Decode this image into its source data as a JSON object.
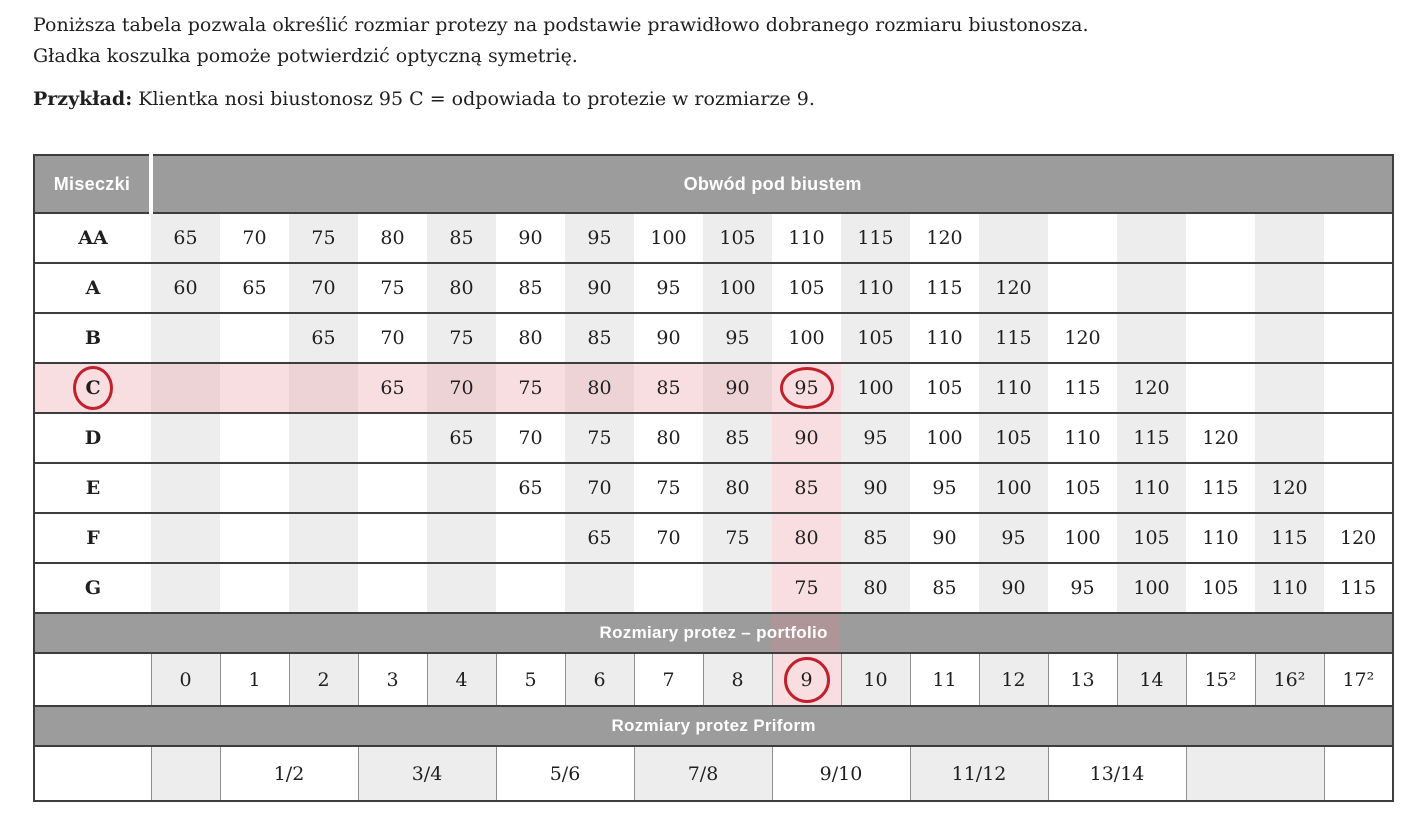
{
  "intro": {
    "line1": "Poniższa tabela pozwala określić rozmiar protezy na podstawie prawidłowo dobranego rozmiaru biustonosza.",
    "line2": "Gładka koszulka pomoże potwierdzić optyczną symetrię.",
    "example_label": "Przykład:",
    "example_text": " Klientka nosi biustonosz 95 C = odpowiada to protezie w rozmiarze 9."
  },
  "table": {
    "header": {
      "cups": "Miseczki",
      "band": "Obwód pod biustem"
    },
    "cup_rows": [
      {
        "cup": "AA",
        "values": [
          "65",
          "70",
          "75",
          "80",
          "85",
          "90",
          "95",
          "100",
          "105",
          "110",
          "115",
          "120",
          "",
          "",
          "",
          "",
          "",
          ""
        ]
      },
      {
        "cup": "A",
        "values": [
          "60",
          "65",
          "70",
          "75",
          "80",
          "85",
          "90",
          "95",
          "100",
          "105",
          "110",
          "115",
          "120",
          "",
          "",
          "",
          "",
          ""
        ]
      },
      {
        "cup": "B",
        "values": [
          "",
          "",
          "65",
          "70",
          "75",
          "80",
          "85",
          "90",
          "95",
          "100",
          "105",
          "110",
          "115",
          "120",
          "",
          "",
          "",
          ""
        ]
      },
      {
        "cup": "C",
        "values": [
          "",
          "",
          "",
          "65",
          "70",
          "75",
          "80",
          "85",
          "90",
          "95",
          "100",
          "105",
          "110",
          "115",
          "120",
          "",
          "",
          ""
        ]
      },
      {
        "cup": "D",
        "values": [
          "",
          "",
          "",
          "",
          "65",
          "70",
          "75",
          "80",
          "85",
          "90",
          "95",
          "100",
          "105",
          "110",
          "115",
          "120",
          "",
          ""
        ]
      },
      {
        "cup": "E",
        "values": [
          "",
          "",
          "",
          "",
          "",
          "65",
          "70",
          "75",
          "80",
          "85",
          "90",
          "95",
          "100",
          "105",
          "110",
          "115",
          "120",
          ""
        ]
      },
      {
        "cup": "F",
        "values": [
          "",
          "",
          "",
          "",
          "",
          "",
          "65",
          "70",
          "75",
          "80",
          "85",
          "90",
          "95",
          "100",
          "105",
          "110",
          "115",
          "120"
        ]
      },
      {
        "cup": "G",
        "values": [
          "",
          "",
          "",
          "",
          "",
          "",
          "",
          "",
          "",
          "75",
          "80",
          "85",
          "90",
          "95",
          "100",
          "105",
          "110",
          "115"
        ]
      }
    ],
    "portfolio_band": "Rozmiary protez – portfolio",
    "portfolio_sizes": [
      "0",
      "1",
      "2",
      "3",
      "4",
      "5",
      "6",
      "7",
      "8",
      "9",
      "10",
      "11",
      "12",
      "13",
      "14",
      "15²",
      "16²",
      "17²"
    ],
    "priform_band": "Rozmiary protez Priform",
    "priform_cells": [
      {
        "label": "",
        "span": 1,
        "shade": "gray"
      },
      {
        "label": "1/2",
        "span": 2,
        "shade": "white"
      },
      {
        "label": "3/4",
        "span": 2,
        "shade": "gray"
      },
      {
        "label": "5/6",
        "span": 2,
        "shade": "white"
      },
      {
        "label": "7/8",
        "span": 2,
        "shade": "gray"
      },
      {
        "label": "9/10",
        "span": 2,
        "shade": "white"
      },
      {
        "label": "11/12",
        "span": 2,
        "shade": "gray"
      },
      {
        "label": "13/14",
        "span": 2,
        "shade": "white"
      },
      {
        "label": "",
        "span": 2,
        "shade": "gray"
      },
      {
        "label": "",
        "span": 1,
        "shade": "white"
      }
    ]
  },
  "highlights": {
    "highlighted_row_cup": "C",
    "highlighted_col_index": 9,
    "circled_cup_label": "C",
    "circled_cup_value": "95",
    "circled_portfolio_size": "9",
    "accent_red": "#c2202a",
    "row_pink_light": "#f9dee1",
    "row_pink_dark": "#edd3d6",
    "band_strip_color": "#ad9598",
    "gray_band_color": "#9c9c9c",
    "alt_column_color": "#ededed"
  }
}
